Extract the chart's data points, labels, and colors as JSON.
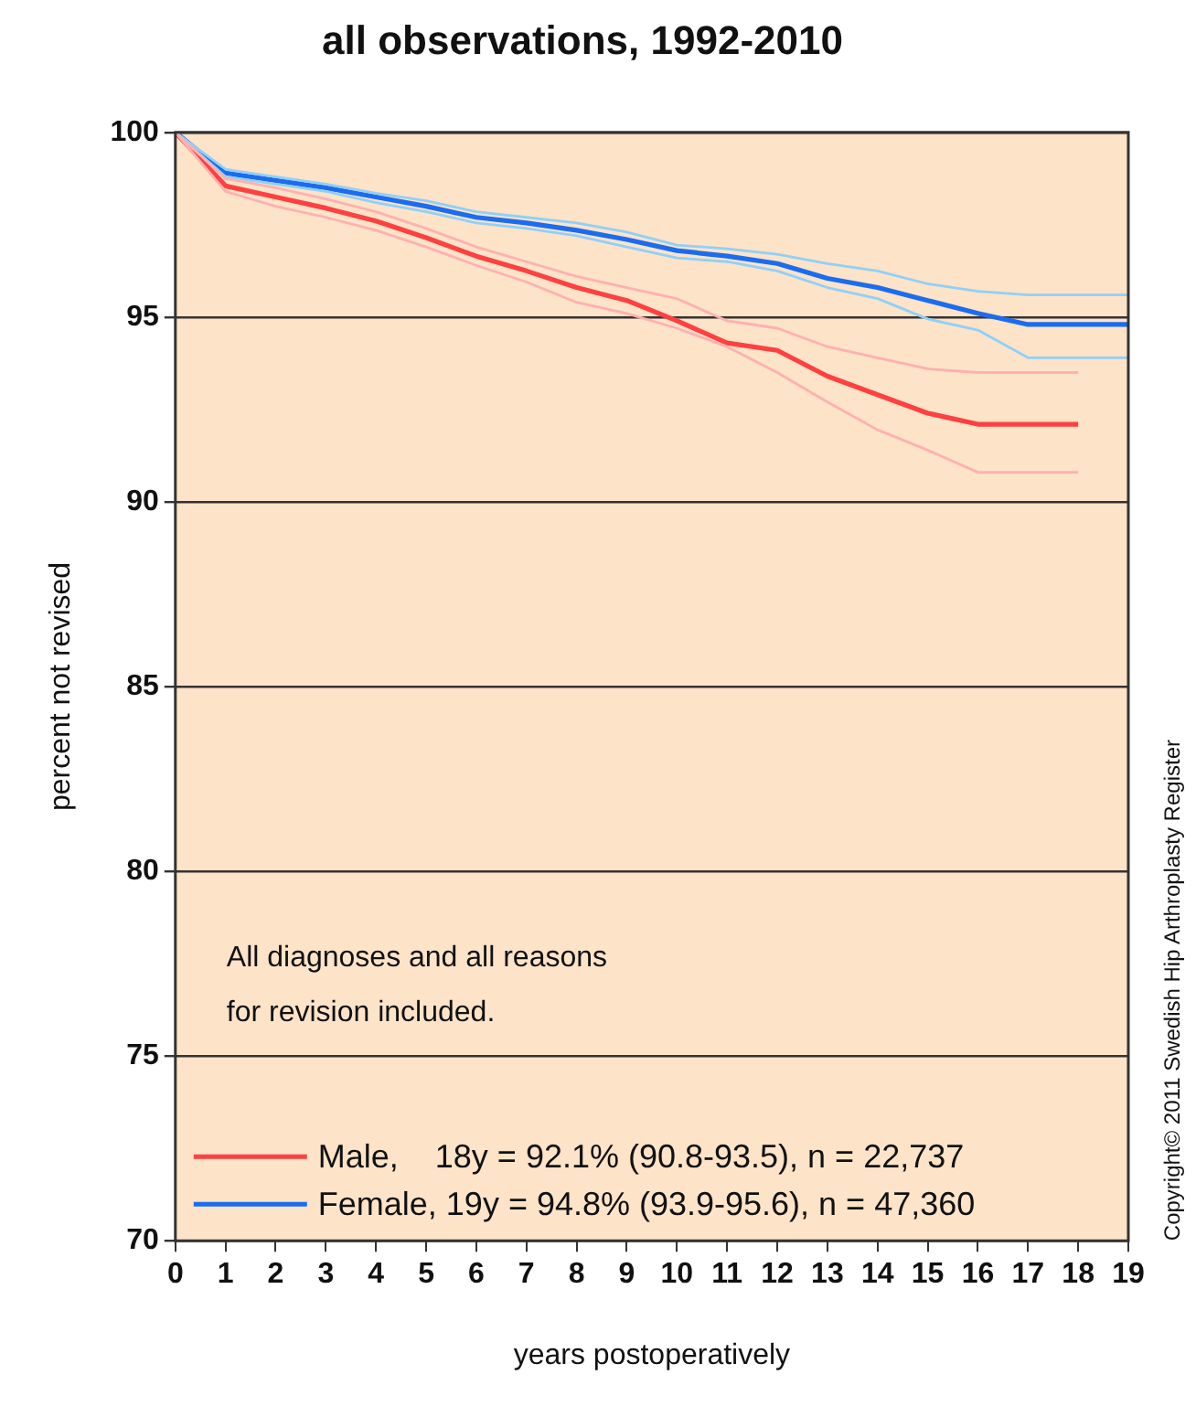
{
  "chart_data": {
    "type": "line",
    "title": "all observations, 1992-2010",
    "xlabel": "years postoperatively",
    "ylabel": "percent not revised",
    "xlim": [
      0,
      19
    ],
    "xticks": [
      0,
      1,
      2,
      3,
      4,
      5,
      6,
      7,
      8,
      9,
      10,
      11,
      12,
      13,
      14,
      15,
      16,
      17,
      18,
      19
    ],
    "ylim": [
      70,
      100
    ],
    "yticks": [
      70,
      75,
      80,
      85,
      90,
      95,
      100
    ],
    "grid": "y",
    "legend": "bottom left",
    "marker": "none",
    "line_style": "solid",
    "series": [
      {
        "color": "#ffb0b0",
        "x": [
          0,
          1,
          2,
          3,
          4,
          5,
          6,
          7,
          8,
          9,
          10,
          11,
          12,
          13,
          14,
          15,
          16,
          17,
          18
        ],
        "values": [
          100,
          98.75,
          98.5,
          98.2,
          97.85,
          97.4,
          96.9,
          96.5,
          96.1,
          95.8,
          95.5,
          94.9,
          94.7,
          94.2,
          93.9,
          93.6,
          93.5,
          93.5,
          93.5
        ]
      },
      {
        "color": "#ffb0b0",
        "x": [
          0,
          1,
          2,
          3,
          4,
          5,
          6,
          7,
          8,
          9,
          10,
          11,
          12,
          13,
          14,
          15,
          16,
          17,
          18
        ],
        "values": [
          100,
          98.4,
          98.0,
          97.7,
          97.35,
          96.9,
          96.4,
          95.95,
          95.4,
          95.1,
          94.7,
          94.2,
          93.5,
          92.7,
          91.95,
          91.4,
          90.8,
          90.8,
          90.8
        ]
      },
      {
        "color": "#90d0f8",
        "x": [
          0,
          1,
          2,
          3,
          4,
          5,
          6,
          7,
          8,
          9,
          10,
          11,
          12,
          13,
          14,
          15,
          16,
          17,
          18,
          19
        ],
        "values": [
          100,
          99.0,
          98.8,
          98.6,
          98.35,
          98.15,
          97.85,
          97.7,
          97.55,
          97.3,
          96.95,
          96.85,
          96.7,
          96.45,
          96.25,
          95.9,
          95.7,
          95.6,
          95.6,
          95.6
        ]
      },
      {
        "color": "#90d0f8",
        "x": [
          0,
          1,
          2,
          3,
          4,
          5,
          6,
          7,
          8,
          9,
          10,
          11,
          12,
          13,
          14,
          15,
          16,
          17,
          18,
          19
        ],
        "values": [
          100,
          98.8,
          98.6,
          98.4,
          98.1,
          97.85,
          97.55,
          97.4,
          97.2,
          96.9,
          96.6,
          96.5,
          96.25,
          95.8,
          95.5,
          94.95,
          94.65,
          93.9,
          93.9,
          93.9
        ]
      },
      {
        "name": "Male,    18y = 92.1% (90.8-93.5), n = 22,737",
        "color": "#ff4040",
        "x": [
          0,
          1,
          2,
          3,
          4,
          5,
          6,
          7,
          8,
          9,
          10,
          11,
          12,
          13,
          14,
          15,
          16,
          17,
          18
        ],
        "values": [
          100,
          98.55,
          98.25,
          97.95,
          97.6,
          97.15,
          96.65,
          96.25,
          95.8,
          95.45,
          94.9,
          94.3,
          94.1,
          93.4,
          92.9,
          92.4,
          92.1,
          92.1,
          92.1
        ]
      },
      {
        "name": "Female, 19y = 94.8% (93.9-95.6), n = 47,360",
        "color": "#1a6cf0",
        "x": [
          0,
          1,
          2,
          3,
          4,
          5,
          6,
          7,
          8,
          9,
          10,
          11,
          12,
          13,
          14,
          15,
          16,
          17,
          18,
          19
        ],
        "values": [
          100,
          98.9,
          98.7,
          98.5,
          98.25,
          98.0,
          97.7,
          97.55,
          97.35,
          97.1,
          96.8,
          96.65,
          96.45,
          96.05,
          95.8,
          95.45,
          95.1,
          94.8,
          94.8,
          94.8
        ]
      }
    ],
    "annotations": [
      "All diagnoses and all reasons\nfor revision included.",
      "Copyright© 2011 Swedish Hip Arthroplasty Register"
    ]
  }
}
